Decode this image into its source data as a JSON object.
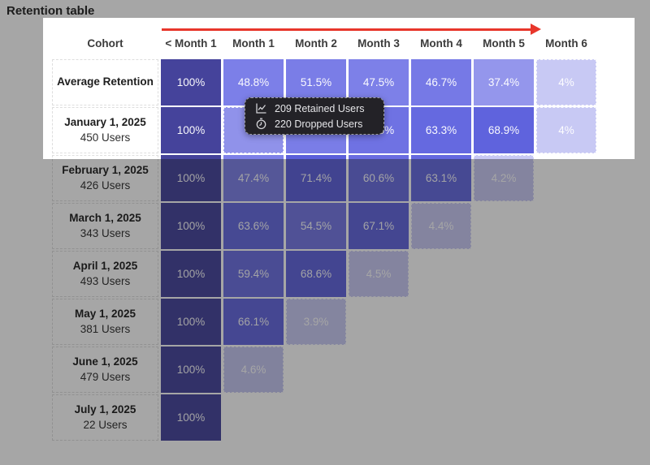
{
  "title": "Retention table",
  "colors": {
    "arrow_red": "#e8362b",
    "tooltip_bg": "#232227",
    "dim_overlay": "rgba(22,22,22,0.38)",
    "cell_dark": "#45439B",
    "cell_light": "#C8C9F4",
    "hover_cell": "#9092EA"
  },
  "tooltip": {
    "rows": [
      {
        "icon": "line-chart-icon",
        "label": "209 Retained Users"
      },
      {
        "icon": "clock-icon",
        "label": "220 Dropped Users"
      }
    ]
  },
  "table": {
    "columns": [
      "Cohort",
      "< Month 1",
      "Month 1",
      "Month 2",
      "Month 3",
      "Month 4",
      "Month 5",
      "Month 6"
    ],
    "rows": [
      {
        "label": "Average Retention",
        "sublabel": "",
        "cells": [
          {
            "v": "100%",
            "c": "#45439B"
          },
          {
            "v": "48.8%",
            "c": "#7C7FE8"
          },
          {
            "v": "51.5%",
            "c": "#7A7DE7"
          },
          {
            "v": "47.5%",
            "c": "#7D80E8"
          },
          {
            "v": "46.7%",
            "c": "#7679E6"
          },
          {
            "v": "37.4%",
            "c": "#9496EC"
          },
          {
            "v": "4%",
            "c": "#C8C9F4",
            "dashed": true
          }
        ]
      },
      {
        "label": "January 1, 2025",
        "sublabel": "450 Users",
        "cells": [
          {
            "v": "100%",
            "c": "#45439B"
          },
          {
            "v": "",
            "c": "#9092EA",
            "dashed": true,
            "hover": true
          },
          {
            "v": "",
            "c": "#7A7DE7"
          },
          {
            "v": "46.5%",
            "c": "#6F72E3"
          },
          {
            "v": "63.3%",
            "c": "#6569E0"
          },
          {
            "v": "68.9%",
            "c": "#5F63DD"
          },
          {
            "v": "4%",
            "c": "#C8C9F4",
            "dashed": true
          }
        ]
      },
      {
        "label": "February 1, 2025",
        "sublabel": "426 Users",
        "cells": [
          {
            "v": "100%",
            "c": "#45439B"
          },
          {
            "v": "47.4%",
            "c": "#7D80E8"
          },
          {
            "v": "71.4%",
            "c": "#5C60DB"
          },
          {
            "v": "60.6%",
            "c": "#6A6DE1"
          },
          {
            "v": "63.1%",
            "c": "#6569E0"
          },
          {
            "v": "4.2%",
            "c": "#C8C9F4",
            "dashed": true
          }
        ]
      },
      {
        "label": "March 1, 2025",
        "sublabel": "343 Users",
        "cells": [
          {
            "v": "100%",
            "c": "#45439B"
          },
          {
            "v": "63.6%",
            "c": "#6569E0"
          },
          {
            "v": "54.5%",
            "c": "#7477E5"
          },
          {
            "v": "67.1%",
            "c": "#6165DE"
          },
          {
            "v": "4.4%",
            "c": "#C8C9F4",
            "dashed": true
          }
        ]
      },
      {
        "label": "April 1, 2025",
        "sublabel": "493 Users",
        "cells": [
          {
            "v": "100%",
            "c": "#45439B"
          },
          {
            "v": "59.4%",
            "c": "#6B6EE2"
          },
          {
            "v": "68.6%",
            "c": "#5F63DD"
          },
          {
            "v": "4.5%",
            "c": "#C8C9F4",
            "dashed": true
          }
        ]
      },
      {
        "label": "May 1, 2025",
        "sublabel": "381 Users",
        "cells": [
          {
            "v": "100%",
            "c": "#45439B"
          },
          {
            "v": "66.1%",
            "c": "#6367DF"
          },
          {
            "v": "3.9%",
            "c": "#C9CAF4",
            "dashed": true
          }
        ]
      },
      {
        "label": "June 1, 2025",
        "sublabel": "479 Users",
        "cells": [
          {
            "v": "100%",
            "c": "#45439B"
          },
          {
            "v": "4.6%",
            "c": "#C4C5F0",
            "dashed": true
          }
        ]
      },
      {
        "label": "July 1, 2025",
        "sublabel": "22 Users",
        "cells": [
          {
            "v": "100%",
            "c": "#45439B"
          }
        ]
      }
    ]
  },
  "chart_data": {
    "type": "heatmap",
    "title": "Retention table",
    "x_categories": [
      "< Month 1",
      "Month 1",
      "Month 2",
      "Month 3",
      "Month 4",
      "Month 5",
      "Month 6"
    ],
    "series": [
      {
        "name": "Average Retention",
        "users": null,
        "values": [
          100,
          48.8,
          51.5,
          47.5,
          46.7,
          37.4,
          4
        ]
      },
      {
        "name": "January 1, 2025",
        "users": 450,
        "values": [
          100,
          null,
          null,
          46.5,
          63.3,
          68.9,
          4
        ],
        "note_hidden_by_tooltip": [
          1,
          2
        ]
      },
      {
        "name": "February 1, 2025",
        "users": 426,
        "values": [
          100,
          47.4,
          71.4,
          60.6,
          63.1,
          4.2
        ]
      },
      {
        "name": "March 1, 2025",
        "users": 343,
        "values": [
          100,
          63.6,
          54.5,
          67.1,
          4.4
        ]
      },
      {
        "name": "April 1, 2025",
        "users": 493,
        "values": [
          100,
          59.4,
          68.6,
          4.5
        ]
      },
      {
        "name": "May 1, 2025",
        "users": 381,
        "values": [
          100,
          66.1,
          3.9
        ]
      },
      {
        "name": "June 1, 2025",
        "users": 479,
        "values": [
          100,
          4.6
        ]
      },
      {
        "name": "July 1, 2025",
        "users": 22,
        "values": [
          100
        ]
      }
    ],
    "tooltip": {
      "retained_users": 209,
      "dropped_users": 220
    },
    "legend": "none",
    "color_scale": "higher % = darker indigo, lowest % = light lavender"
  }
}
